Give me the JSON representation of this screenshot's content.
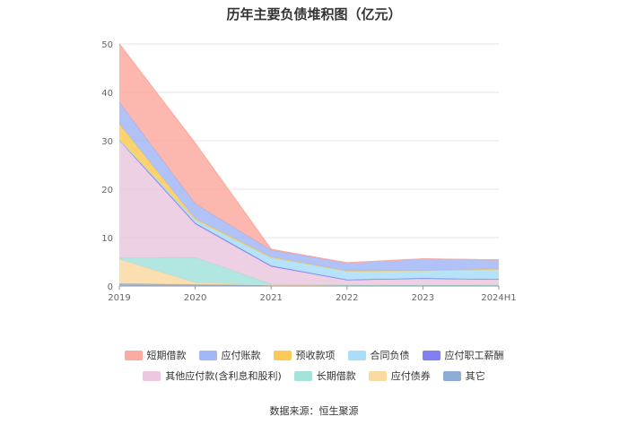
{
  "chart_data": {
    "type": "area",
    "stacked": true,
    "title": "历年主要负债堆积图（亿元）",
    "xlabel": "",
    "ylabel": "",
    "ylim": [
      0,
      50
    ],
    "yticks": [
      0,
      10,
      20,
      30,
      40,
      50
    ],
    "categories": [
      "2019",
      "2020",
      "2021",
      "2022",
      "2023",
      "2024H1"
    ],
    "grid": true,
    "legend_position": "bottom",
    "series": [
      {
        "name": "其它",
        "color": "#8eadd6",
        "values": [
          0.5,
          0.3,
          0.2,
          0.2,
          0.2,
          0.2
        ]
      },
      {
        "name": "应付债券",
        "color": "#fbd9a3",
        "values": [
          5.0,
          0.4,
          0,
          0,
          0,
          0
        ]
      },
      {
        "name": "长期借款",
        "color": "#a4e2dc",
        "values": [
          0.3,
          5.2,
          0.2,
          0,
          0,
          0
        ]
      },
      {
        "name": "其他应付款(含利息和股利)",
        "color": "#ebc8e0",
        "values": [
          24.2,
          6.9,
          3.6,
          1.0,
          1.3,
          1.1
        ]
      },
      {
        "name": "应付职工薪酬",
        "color": "#7f7ff0",
        "values": [
          0.2,
          0.2,
          0.2,
          0.1,
          0.1,
          0.1
        ]
      },
      {
        "name": "合同负债",
        "color": "#a9def8",
        "values": [
          0,
          0.6,
          1.6,
          1.8,
          1.6,
          2.1
        ]
      },
      {
        "name": "预收款项",
        "color": "#fccb57",
        "values": [
          3.3,
          0.3,
          0.2,
          0,
          0,
          0
        ]
      },
      {
        "name": "应付账款",
        "color": "#a2b7f6",
        "values": [
          4.5,
          3.1,
          1.4,
          1.7,
          2.4,
          1.9
        ]
      },
      {
        "name": "短期借款",
        "color": "#fbaba0",
        "values": [
          12.0,
          12.5,
          0.2,
          0,
          0,
          0
        ]
      }
    ]
  },
  "legend": {
    "row1": [
      {
        "label": "短期借款",
        "color": "#fbaba0"
      },
      {
        "label": "应付账款",
        "color": "#a2b7f6"
      },
      {
        "label": "预收款项",
        "color": "#fccb57"
      },
      {
        "label": "合同负债",
        "color": "#a9def8"
      },
      {
        "label": "应付职工薪酬",
        "color": "#7f7ff0"
      }
    ],
    "row2": [
      {
        "label": "其他应付款(含利息和股利)",
        "color": "#ebc8e0"
      },
      {
        "label": "长期借款",
        "color": "#a4e2dc"
      },
      {
        "label": "应付债券",
        "color": "#fbd9a3"
      },
      {
        "label": "其它",
        "color": "#8eadd6"
      }
    ]
  },
  "source": "数据来源：恒生聚源"
}
